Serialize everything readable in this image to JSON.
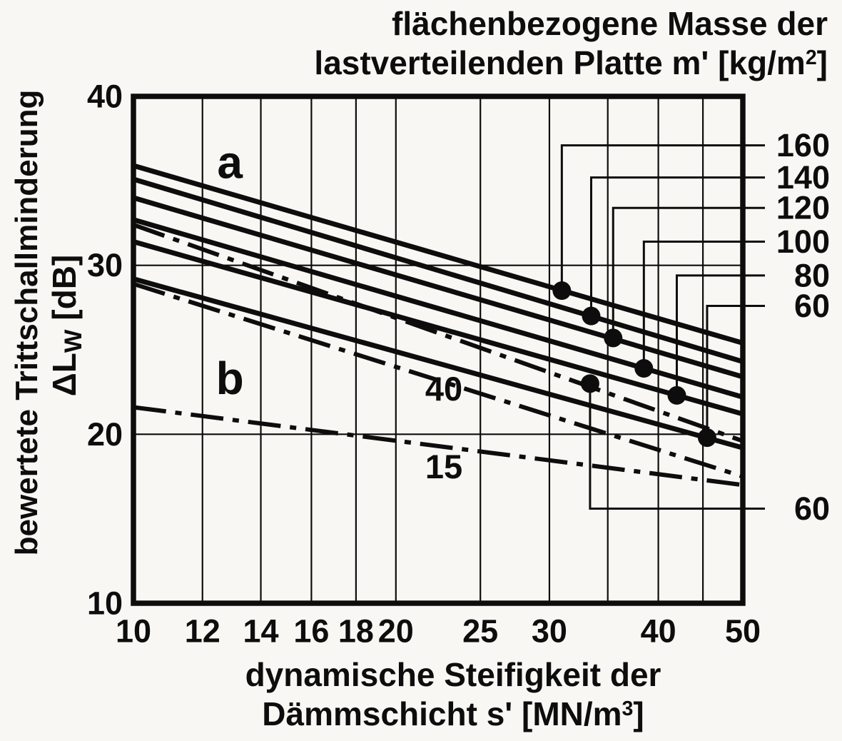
{
  "page": {
    "background": "#f8f7f3",
    "ink": "#0d0d0d"
  },
  "titles": {
    "mass_title": {
      "line1": "flächenbezogene Masse der",
      "line2_pre": "lastverteilenden Platte  m' [kg/m",
      "line2_sup": "2",
      "line2_post": "]"
    },
    "x_title": {
      "line1": "dynamische Steifigkeit  der",
      "line2_pre": "Dämmschicht  s' [MN/m",
      "line2_sup": "3",
      "line2_post": "]"
    },
    "y_title": {
      "line1": "bewertete Trittschallminderung",
      "line2_pre": "ΔL",
      "line2_sub": "W",
      "line2_post": "  [dB]"
    }
  },
  "chart_data": {
    "type": "line",
    "title": "flächenbezogene Masse der lastverteilenden Platte m' [kg/m²]",
    "xlabel": "dynamische Steifigkeit der Dämmschicht s' [MN/m³]",
    "ylabel": "bewertete Trittschallminderung ΔLw [dB]",
    "x_scale": "log",
    "xlim": [
      10,
      50
    ],
    "ylim": [
      10,
      40
    ],
    "grid": true,
    "x_ticks": [
      10,
      12,
      14,
      16,
      18,
      20,
      25,
      30,
      40,
      50
    ],
    "x_gridlines": [
      12,
      14,
      16,
      18,
      20,
      25,
      30,
      35,
      40,
      45
    ],
    "y_ticks": [
      10,
      20,
      30,
      40
    ],
    "y_gridlines": [
      20,
      30
    ],
    "series": [
      {
        "name": "a m'=160",
        "group": "a",
        "m": 160,
        "style": "solid",
        "points": [
          [
            10,
            35.9
          ],
          [
            50,
            25.4
          ]
        ]
      },
      {
        "name": "a m'=140",
        "group": "a",
        "m": 140,
        "style": "solid",
        "points": [
          [
            10,
            35.1
          ],
          [
            50,
            24.3
          ]
        ]
      },
      {
        "name": "a m'=120",
        "group": "a",
        "m": 120,
        "style": "solid",
        "points": [
          [
            10,
            34.0
          ],
          [
            50,
            23.4
          ]
        ]
      },
      {
        "name": "a m'=100",
        "group": "a",
        "m": 100,
        "style": "solid",
        "points": [
          [
            10,
            32.7
          ],
          [
            50,
            22.2
          ]
        ]
      },
      {
        "name": "a m'=80",
        "group": "a",
        "m": 80,
        "style": "solid",
        "points": [
          [
            10,
            31.4
          ],
          [
            50,
            21.2
          ]
        ]
      },
      {
        "name": "a m'=60",
        "group": "a",
        "m": 60,
        "style": "solid",
        "points": [
          [
            10,
            29.2
          ],
          [
            50,
            19.2
          ]
        ]
      },
      {
        "name": "b m'=60",
        "group": "b",
        "m": 60,
        "style": "dashdot",
        "points": [
          [
            10,
            32.4
          ],
          [
            50,
            19.6
          ]
        ]
      },
      {
        "name": "b m'=40",
        "group": "b",
        "m": 40,
        "style": "dashdot",
        "points": [
          [
            10,
            28.9
          ],
          [
            50,
            17.5
          ]
        ]
      },
      {
        "name": "b m'=15",
        "group": "b",
        "m": 15,
        "style": "dashdot",
        "points": [
          [
            10,
            21.6
          ],
          [
            50,
            17.0
          ]
        ]
      }
    ],
    "markers": [
      {
        "label": "160",
        "x": 31.0,
        "y": 28.5,
        "label_y": 37.1,
        "side": "top"
      },
      {
        "label": "140",
        "x": 33.5,
        "y": 27.0,
        "label_y": 35.2,
        "side": "top"
      },
      {
        "label": "120",
        "x": 35.5,
        "y": 25.7,
        "label_y": 33.4,
        "side": "top"
      },
      {
        "label": "100",
        "x": 38.5,
        "y": 23.9,
        "label_y": 31.4,
        "side": "top"
      },
      {
        "label": "80",
        "x": 42.0,
        "y": 22.3,
        "label_y": 29.4,
        "side": "top"
      },
      {
        "label": "60",
        "x": 45.5,
        "y": 19.8,
        "label_y": 27.6,
        "side": "top"
      },
      {
        "label": "60",
        "x": 33.4,
        "y": 23.0,
        "label_y": 15.6,
        "side": "bottom"
      }
    ],
    "curve_labels": [
      {
        "text": "a",
        "x": 12.9,
        "y": 36.1,
        "size": 64
      },
      {
        "text": "b",
        "x": 12.9,
        "y": 23.3,
        "size": 64
      },
      {
        "text": "40",
        "x": 22.7,
        "y": 22.7,
        "size": 47
      },
      {
        "text": "15",
        "x": 22.7,
        "y": 18.1,
        "size": 47
      }
    ]
  }
}
